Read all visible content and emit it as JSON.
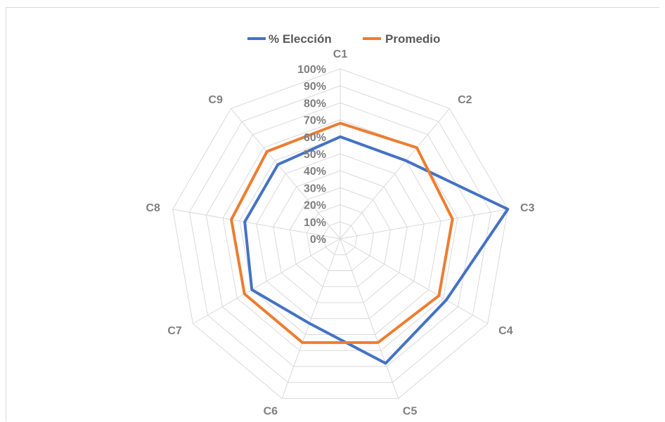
{
  "chart_data": {
    "type": "radar",
    "categories": [
      "C1",
      "C2",
      "C3",
      "C4",
      "C5",
      "C6",
      "C7",
      "C8",
      "C9"
    ],
    "series": [
      {
        "name": "% Elección",
        "color": "#4472c4",
        "values": [
          60,
          60,
          100,
          72,
          78,
          53,
          60,
          57,
          57
        ]
      },
      {
        "name": "Promedio",
        "color": "#ed7d31",
        "values": [
          68,
          70,
          67,
          67,
          65,
          65,
          65,
          65,
          67
        ]
      }
    ],
    "radial_ticks": [
      "0%",
      "10%",
      "20%",
      "30%",
      "40%",
      "50%",
      "60%",
      "70%",
      "80%",
      "90%",
      "100%"
    ],
    "rlim": [
      0,
      100
    ],
    "grid": true,
    "legend_position": "top"
  }
}
